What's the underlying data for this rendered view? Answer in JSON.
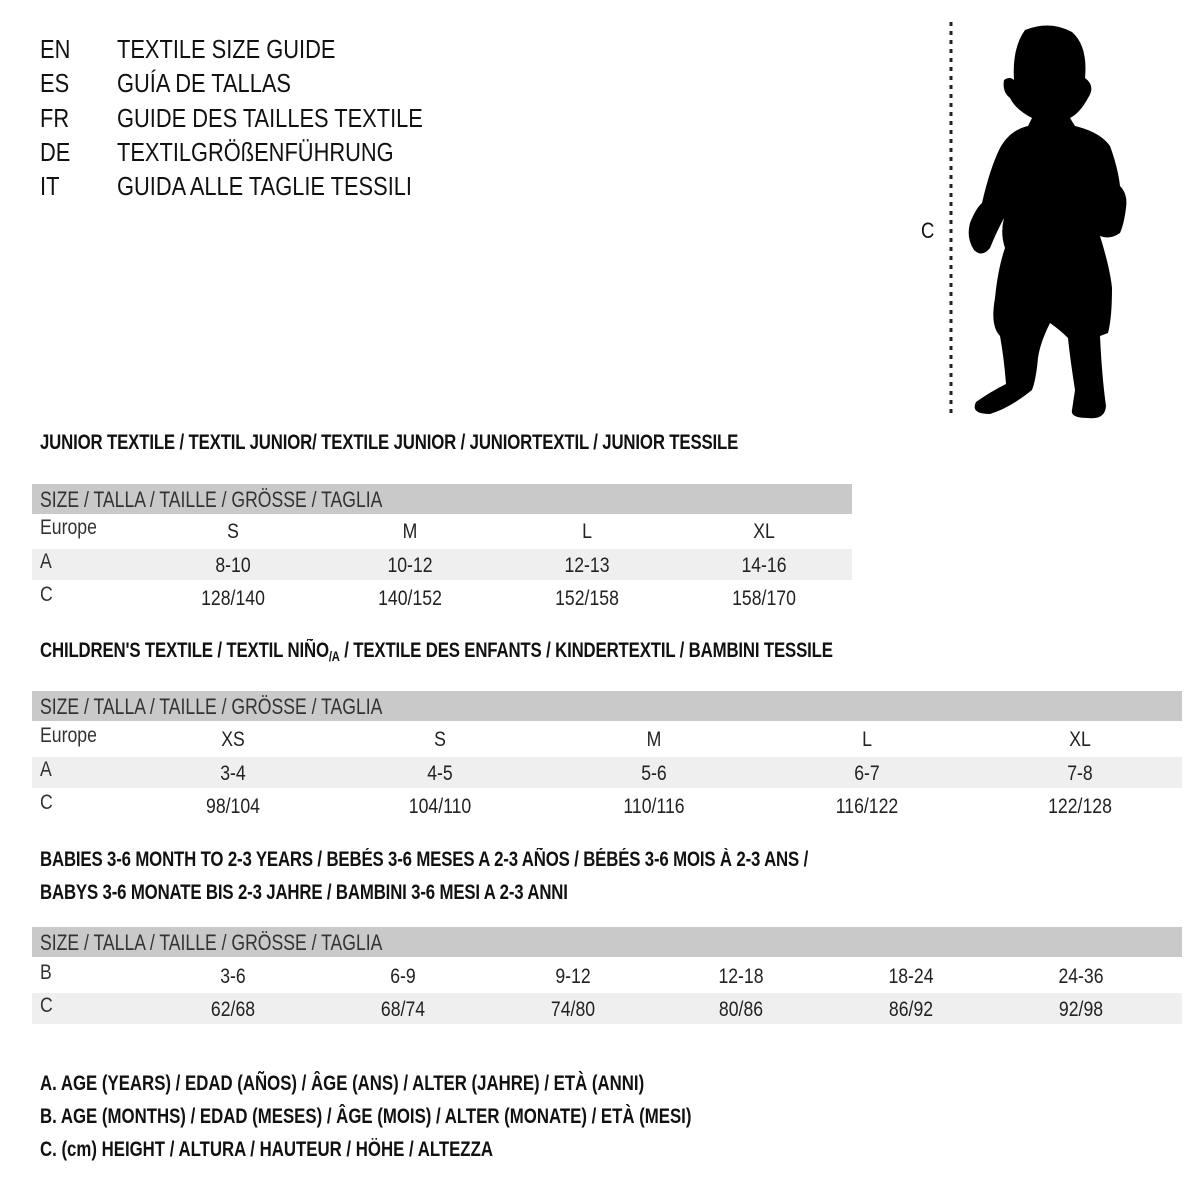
{
  "header": [
    {
      "code": "EN",
      "title": "TEXTILE SIZE GUIDE"
    },
    {
      "code": "ES",
      "title": "GUÍA DE TALLAS"
    },
    {
      "code": "FR",
      "title": "GUIDE DES TAILLES TEXTILE"
    },
    {
      "code": "DE",
      "title": "TEXTILGRÖßENFÜHRUNG"
    },
    {
      "code": "IT",
      "title": "GUIDA ALLE TAGLIE TESSILI"
    }
  ],
  "figure": {
    "measure_label": "C",
    "icon": "child-silhouette"
  },
  "size_bar_label": "SIZE / TALLA / TAILLE / GRÖSSE / TAGLIA",
  "sections": [
    {
      "title": "JUNIOR TEXTILE / TEXTIL JUNIOR/ TEXTILE JUNIOR / JUNIORTEXTIL / JUNIOR TESSILE",
      "rows": [
        {
          "label": "Europe",
          "values": [
            "S",
            "M",
            "L",
            "XL"
          ]
        },
        {
          "label": "A",
          "values": [
            "8-10",
            "10-12",
            "12-13",
            "14-16"
          ]
        },
        {
          "label": "C",
          "values": [
            "128/140",
            "140/152",
            "152/158",
            "158/170"
          ]
        }
      ]
    },
    {
      "title_pre": "CHILDREN'S TEXTILE / TEXTIL NIÑO",
      "title_sub": "/A",
      "title_post": " / TEXTILE DES ENFANTS / KINDERTEXTIL / BAMBINI TESSILE",
      "rows": [
        {
          "label": "Europe",
          "values": [
            "XS",
            "S",
            "M",
            "L",
            "XL"
          ]
        },
        {
          "label": "A",
          "values": [
            "3-4",
            "4-5",
            "5-6",
            "6-7",
            "7-8"
          ]
        },
        {
          "label": "C",
          "values": [
            "98/104",
            "104/110",
            "110/116",
            "116/122",
            "122/128"
          ]
        }
      ]
    },
    {
      "title_line1": "BABIES 3-6 MONTH TO 2-3 YEARS / BEBÉS 3-6 MESES A 2-3 AÑOS / BÉBÉS 3-6 MOIS À 2-3 ANS /",
      "title_line2": "BABYS 3-6 MONATE BIS 2-3 JAHRE / BAMBINI 3-6 MESI A 2-3 ANNI",
      "rows": [
        {
          "label": "B",
          "values": [
            "3-6",
            "6-9",
            "9-12",
            "12-18",
            "18-24",
            "24-36"
          ]
        },
        {
          "label": "C",
          "values": [
            "62/68",
            "68/74",
            "74/80",
            "80/86",
            "86/92",
            "92/98"
          ]
        }
      ]
    }
  ],
  "legend": [
    "A. AGE (YEARS) / EDAD (AÑOS) / ÂGE (ANS) / ALTER (JAHRE) / ETÀ (ANNI)",
    "B. AGE (MONTHS) / EDAD (MESES) / ÂGE (MOIS) / ALTER (MONATE) / ETÀ (MESI)",
    "C. (cm) HEIGHT / ALTURA / HAUTEUR / HÖHE / ALTEZZA"
  ],
  "colors": {
    "bar": "#c9c9c9",
    "shade": "#efefef",
    "text": "#111111"
  }
}
